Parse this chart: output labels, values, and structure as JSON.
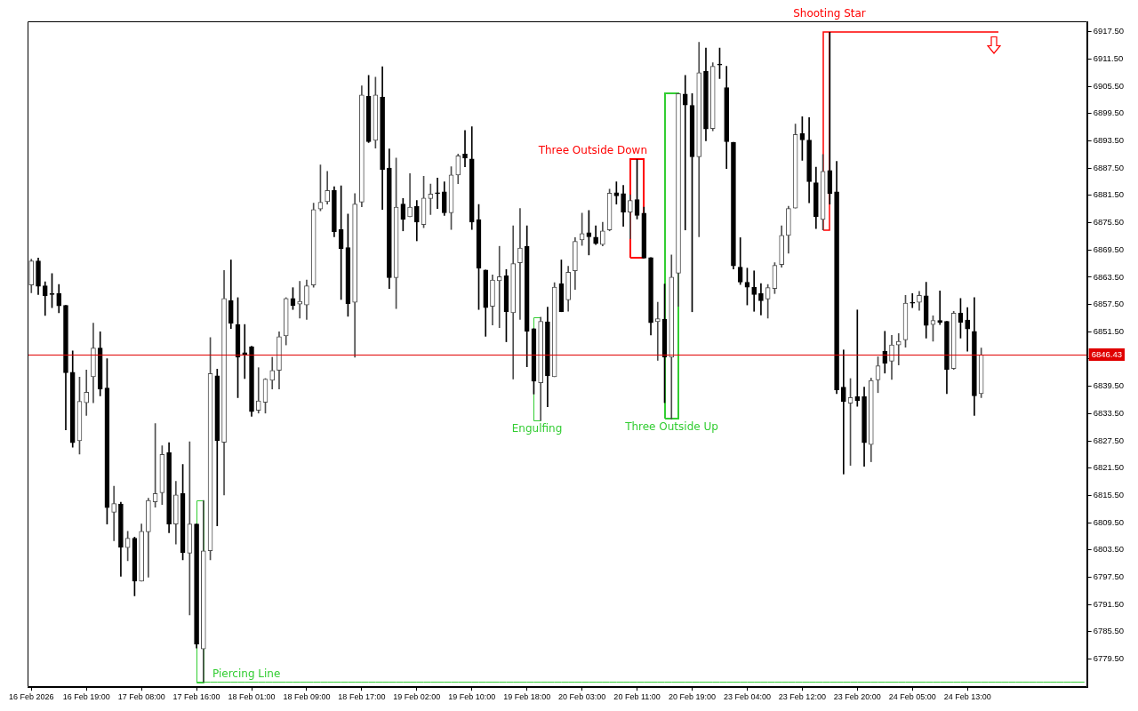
{
  "chart_data": {
    "type": "candlestick",
    "categories": [
      "16 Feb 2026",
      null,
      null,
      null,
      null,
      null,
      null,
      null,
      "16 Feb 19:00",
      null,
      null,
      null,
      null,
      null,
      null,
      null,
      "17 Feb 08:00",
      null,
      null,
      null,
      null,
      null,
      null,
      null,
      "17 Feb 16:00",
      null,
      null,
      null,
      null,
      null,
      null,
      null,
      "18 Feb 01:00",
      null,
      null,
      null,
      null,
      null,
      null,
      null,
      "18 Feb 09:00",
      null,
      null,
      null,
      null,
      null,
      null,
      null,
      "18 Feb 17:00",
      null,
      null,
      null,
      null,
      null,
      null,
      null,
      "19 Feb 02:00",
      null,
      null,
      null,
      null,
      null,
      null,
      null,
      "19 Feb 10:00",
      null,
      null,
      null,
      null,
      null,
      null,
      null,
      "19 Feb 18:00",
      null,
      null,
      null,
      null,
      null,
      null,
      null,
      "20 Feb 03:00",
      null,
      null,
      null,
      null,
      null,
      null,
      null,
      "20 Feb 11:00",
      null,
      null,
      null,
      null,
      null,
      null,
      null,
      "20 Feb 19:00",
      null,
      null,
      null,
      null,
      null,
      null,
      null,
      "23 Feb 04:00",
      null,
      null,
      null,
      null,
      null,
      null,
      null,
      "23 Feb 12:00",
      null,
      null,
      null,
      null,
      null,
      null,
      null,
      "23 Feb 20:00",
      null,
      null,
      null,
      null,
      null,
      null,
      null,
      "24 Feb 05:00",
      null,
      null,
      null,
      null,
      null,
      null,
      null,
      "24 Feb 13:00",
      null,
      null,
      null,
      null,
      null,
      null,
      null,
      null,
      null,
      null,
      null,
      null,
      null,
      null,
      null,
      null,
      null
    ],
    "ohlc": [
      [
        6861.8,
        6867.5,
        6860.1,
        6867.1
      ],
      [
        6867.1,
        6867.7,
        6859.7,
        6861.5
      ],
      [
        6861.6,
        6862.5,
        6855.1,
        6859.4
      ],
      [
        6859.7,
        6864.3,
        6856.8,
        6859.7
      ],
      [
        6859.9,
        6861.9,
        6855.7,
        6857.2
      ],
      [
        6857.3,
        6857.3,
        6829.9,
        6842.5
      ],
      [
        6842.6,
        6847.3,
        6826.1,
        6827.1
      ],
      [
        6827.5,
        6841.5,
        6824.6,
        6836.2
      ],
      [
        6835.9,
        6843.1,
        6833.1,
        6838.2
      ],
      [
        6841.6,
        6853.4,
        6835.9,
        6847.9
      ],
      [
        6847.9,
        6851.5,
        6837.4,
        6838.9
      ],
      [
        6839.1,
        6845.6,
        6809.2,
        6812.8
      ],
      [
        6811.8,
        6817.5,
        6805.5,
        6813.7
      ],
      [
        6813.6,
        6814.0,
        6797.7,
        6804.1
      ],
      [
        6804.0,
        6807.6,
        6801.1,
        6806.1
      ],
      [
        6806.1,
        6806.3,
        6793.4,
        6796.6
      ],
      [
        6796.6,
        6809.2,
        6796.6,
        6807.6
      ],
      [
        6807.5,
        6814.9,
        6797.5,
        6814.4
      ],
      [
        6814.1,
        6831.3,
        6812.9,
        6815.9
      ],
      [
        6816.1,
        6826.4,
        6813.5,
        6824.5
      ],
      [
        6824.9,
        6827.1,
        6807.3,
        6809.2
      ],
      [
        6809.2,
        6818.6,
        6804.8,
        6815.6
      ],
      [
        6815.9,
        6822.3,
        6801.3,
        6802.9
      ],
      [
        6802.8,
        6827.3,
        6789.2,
        6809.2
      ],
      [
        6809.2,
        6809.2,
        6781.9,
        6782.8
      ],
      [
        6781.7,
        6814.4,
        6774.4,
        6803.3
      ],
      [
        6803.3,
        6850.2,
        6801.3,
        6842.3
      ],
      [
        6841.8,
        6843.3,
        6808.8,
        6827.5
      ],
      [
        6827.2,
        6865.0,
        6815.6,
        6858.8
      ],
      [
        6858.4,
        6867.3,
        6852.2,
        6853.4
      ],
      [
        6853.1,
        6859.0,
        6837.0,
        6845.9
      ],
      [
        6846.9,
        6853.1,
        6841.2,
        6846.5
      ],
      [
        6848.2,
        6848.3,
        6832.9,
        6833.9
      ],
      [
        6834.2,
        6843.6,
        6833.6,
        6836.3
      ],
      [
        6836.0,
        6841.2,
        6833.6,
        6841.1
      ],
      [
        6840.8,
        6845.9,
        6838.9,
        6843.0
      ],
      [
        6843.0,
        6851.5,
        6838.9,
        6850.4
      ],
      [
        6850.6,
        6859.0,
        6848.6,
        6858.8
      ],
      [
        6858.8,
        6861.2,
        6856.4,
        6857.3
      ],
      [
        6857.6,
        6862.6,
        6854.5,
        6858.2
      ],
      [
        6857.4,
        6862.9,
        6854.2,
        6861.6
      ],
      [
        6861.8,
        6879.8,
        6861.3,
        6878.4
      ],
      [
        6878.5,
        6888.2,
        6878.1,
        6880.0
      ],
      [
        6880.1,
        6886.8,
        6879.6,
        6882.6
      ],
      [
        6882.6,
        6883.4,
        6872.4,
        6873.5
      ],
      [
        6874.0,
        6883.6,
        6858.6,
        6869.8
      ],
      [
        6870.0,
        6877.4,
        6854.9,
        6857.7
      ],
      [
        6858.0,
        6881.9,
        6845.9,
        6879.6
      ],
      [
        6880.0,
        6905.6,
        6879.0,
        6903.6
      ],
      [
        6903.3,
        6907.9,
        6893.1,
        6893.3
      ],
      [
        6893.6,
        6907.5,
        6891.9,
        6903.6
      ],
      [
        6903.1,
        6909.8,
        6878.4,
        6887.2
      ],
      [
        6887.5,
        6891.7,
        6861.0,
        6863.4
      ],
      [
        6863.4,
        6889.7,
        6856.6,
        6878.9
      ],
      [
        6879.6,
        6880.8,
        6873.7,
        6876.2
      ],
      [
        6876.8,
        6886.3,
        6876.8,
        6878.9
      ],
      [
        6879.1,
        6880.4,
        6871.5,
        6875.6
      ],
      [
        6875.1,
        6885.7,
        6874.4,
        6880.9
      ],
      [
        6880.8,
        6884.0,
        6877.3,
        6881.8
      ],
      [
        6881.9,
        6885.3,
        6878.6,
        6881.9
      ],
      [
        6882.3,
        6884.5,
        6877.1,
        6877.7
      ],
      [
        6877.7,
        6887.8,
        6874.0,
        6886.0
      ],
      [
        6886.0,
        6890.6,
        6884.1,
        6890.2
      ],
      [
        6890.6,
        6895.8,
        6887.8,
        6889.7
      ],
      [
        6889.5,
        6896.6,
        6874.0,
        6875.6
      ],
      [
        6876.2,
        6879.5,
        6856.4,
        6865.5
      ],
      [
        6865.1,
        6865.1,
        6850.5,
        6856.8
      ],
      [
        6857.1,
        6864.0,
        6853.0,
        6862.9
      ],
      [
        6862.7,
        6870.3,
        6852.4,
        6863.6
      ],
      [
        6863.8,
        6865.2,
        6849.3,
        6855.9
      ],
      [
        6855.7,
        6874.8,
        6841.1,
        6866.5
      ],
      [
        6866.7,
        6878.6,
        6854.2,
        6869.9
      ],
      [
        6870.3,
        6874.8,
        6843.8,
        6851.6
      ],
      [
        6852.2,
        6852.2,
        6837.8,
        6840.6
      ],
      [
        6840.3,
        6854.7,
        6832.0,
        6853.8
      ],
      [
        6853.7,
        6856.9,
        6835.0,
        6841.8
      ],
      [
        6841.6,
        6862.3,
        6841.6,
        6861.3
      ],
      [
        6862.1,
        6867.3,
        6855.9,
        6855.9
      ],
      [
        6858.5,
        6865.9,
        6856.0,
        6864.6
      ],
      [
        6864.9,
        6872.2,
        6860.8,
        6871.4
      ],
      [
        6871.7,
        6877.6,
        6870.5,
        6873.1
      ],
      [
        6873.3,
        6878.2,
        6868.4,
        6872.4
      ],
      [
        6872.3,
        6874.8,
        6870.7,
        6870.9
      ],
      [
        6870.7,
        6875.6,
        6870.4,
        6873.7
      ],
      [
        6873.9,
        6882.9,
        6873.7,
        6882.0
      ],
      [
        6882.1,
        6884.5,
        6879.6,
        6881.4
      ],
      [
        6881.9,
        6883.7,
        6874.7,
        6877.8
      ],
      [
        6877.8,
        6881.6,
        6872.0,
        6880.4
      ],
      [
        6880.6,
        6889.4,
        6876.3,
        6877.1
      ],
      [
        6877.6,
        6878.9,
        6867.7,
        6867.7
      ],
      [
        6867.8,
        6867.8,
        6850.8,
        6853.5
      ],
      [
        6853.7,
        6858.0,
        6845.2,
        6854.4
      ],
      [
        6854.3,
        6862.0,
        6835.9,
        6845.9
      ],
      [
        6845.9,
        6868.4,
        6832.3,
        6863.5
      ],
      [
        6864.4,
        6903.9,
        6857.1,
        6903.9
      ],
      [
        6903.8,
        6907.9,
        6873.9,
        6901.4
      ],
      [
        6901.3,
        6903.9,
        6855.9,
        6890.0
      ],
      [
        6890.0,
        6915.2,
        6872.4,
        6908.5
      ],
      [
        6908.8,
        6913.9,
        6893.5,
        6896.1
      ],
      [
        6896.2,
        6910.7,
        6895.7,
        6909.9
      ],
      [
        6910.2,
        6913.9,
        6907.2,
        6910.2
      ],
      [
        6905.2,
        6909.9,
        6887.4,
        6893.3
      ],
      [
        6893.2,
        6893.2,
        6865.3,
        6866.0
      ],
      [
        6865.7,
        6872.2,
        6861.9,
        6862.4
      ],
      [
        6862.4,
        6865.5,
        6857.4,
        6861.3
      ],
      [
        6861.3,
        6864.9,
        6856.0,
        6859.7
      ],
      [
        6859.9,
        6862.1,
        6855.2,
        6858.3
      ],
      [
        6858.7,
        6861.9,
        6854.5,
        6861.2
      ],
      [
        6861.0,
        6866.7,
        6859.9,
        6866.1
      ],
      [
        6866.3,
        6874.8,
        6865.7,
        6872.7
      ],
      [
        6872.7,
        6879.1,
        6868.8,
        6878.6
      ],
      [
        6878.7,
        6897.2,
        6878.7,
        6894.9
      ],
      [
        6895.1,
        6898.8,
        6889.2,
        6893.7
      ],
      [
        6893.7,
        6898.6,
        6879.9,
        6884.5
      ],
      [
        6884.3,
        6887.7,
        6874.2,
        6876.8
      ],
      [
        6876.2,
        6890.5,
        6873.9,
        6886.8
      ],
      [
        6887.0,
        6917.4,
        6879.6,
        6881.9
      ],
      [
        6882.3,
        6889.0,
        6837.9,
        6838.7
      ],
      [
        6839.3,
        6847.5,
        6820.2,
        6836.1
      ],
      [
        6835.8,
        6841.2,
        6822.1,
        6837.0
      ],
      [
        6837.2,
        6856.3,
        6835.1,
        6836.3
      ],
      [
        6837.2,
        6839.3,
        6821.9,
        6827.1
      ],
      [
        6826.7,
        6841.3,
        6822.9,
        6840.8
      ],
      [
        6840.9,
        6846.0,
        6838.1,
        6844.0
      ],
      [
        6847.2,
        6851.6,
        6842.4,
        6844.6
      ],
      [
        6845.0,
        6850.7,
        6841.0,
        6848.6
      ],
      [
        6848.6,
        6851.1,
        6844.2,
        6849.4
      ],
      [
        6849.7,
        6859.5,
        6848.1,
        6857.8
      ],
      [
        6857.8,
        6859.9,
        6856.8,
        6857.8
      ],
      [
        6858.0,
        6860.4,
        6856.2,
        6859.5
      ],
      [
        6859.4,
        6862.4,
        6850.1,
        6852.9
      ],
      [
        6853.1,
        6855.0,
        6849.4,
        6854.0
      ],
      [
        6854.0,
        6860.5,
        6853.1,
        6853.6
      ],
      [
        6853.8,
        6853.8,
        6837.9,
        6843.2
      ],
      [
        6843.4,
        6856.0,
        6843.2,
        6855.6
      ],
      [
        6855.6,
        6858.8,
        6850.1,
        6853.6
      ],
      [
        6854.1,
        6856.8,
        6847.2,
        6852.1
      ],
      [
        6851.6,
        6859.0,
        6833.1,
        6837.4
      ],
      [
        6837.9,
        6847.9,
        6837.0,
        6846.4
      ],
      null,
      null,
      null,
      null,
      null,
      null,
      null,
      null,
      null,
      null,
      null,
      null,
      null,
      null,
      null
    ],
    "colors": [
      "#4d4d4d",
      "#000000",
      "#000000",
      "#000000",
      "#000000",
      "#000000",
      "#000000",
      "#4d4d4d",
      "#4d4d4d",
      "#4d4d4d",
      "#000000",
      "#000000",
      "#4d4d4d",
      "#000000",
      "#4d4d4d",
      "#000000",
      "#4d4d4d",
      "#4d4d4d",
      "#4d4d4d",
      "#4d4d4d",
      "#000000",
      "#4d4d4d",
      "#000000",
      "#4d4d4d",
      "#000000",
      "#4d4d4d",
      "#4d4d4d",
      "#000000",
      "#4d4d4d",
      "#000000",
      "#000000",
      "#000000",
      "#000000",
      "#4d4d4d",
      "#4d4d4d",
      "#4d4d4d",
      "#4d4d4d",
      "#4d4d4d",
      "#000000",
      "#4d4d4d",
      "#4d4d4d",
      "#4d4d4d",
      "#4d4d4d",
      "#4d4d4d",
      "#000000",
      "#000000",
      "#000000",
      "#4d4d4d",
      "#4d4d4d",
      "#000000",
      "#4d4d4d",
      "#000000",
      "#000000",
      "#4d4d4d",
      "#000000",
      "#4d4d4d",
      "#000000",
      "#4d4d4d",
      "#4d4d4d",
      "#000000",
      "#000000",
      "#4d4d4d",
      "#4d4d4d",
      "#000000",
      "#000000",
      "#000000",
      "#000000",
      "#4d4d4d",
      "#4d4d4d",
      "#000000",
      "#4d4d4d",
      "#4d4d4d",
      "#000000",
      "#000000",
      "#4d4d4d",
      "#000000",
      "#4d4d4d",
      "#000000",
      "#4d4d4d",
      "#4d4d4d",
      "#4d4d4d",
      "#000000",
      "#000000",
      "#4d4d4d",
      "#4d4d4d",
      "#000000",
      "#000000",
      "#4d4d4d",
      "#000000",
      "#000000",
      "#000000",
      "#4d4d4d",
      "#000000",
      "#4d4d4d",
      "#4d4d4d",
      "#000000",
      "#000000",
      "#4d4d4d",
      "#000000",
      "#4d4d4d",
      "#000000",
      "#000000",
      "#000000",
      "#000000",
      "#000000",
      "#000000",
      "#000000",
      "#4d4d4d",
      "#4d4d4d",
      "#4d4d4d",
      "#4d4d4d",
      "#4d4d4d",
      "#000000",
      "#000000",
      "#000000",
      "#4d4d4d",
      "#000000",
      "#000000",
      "#000000",
      "#4d4d4d",
      "#000000",
      "#000000",
      "#4d4d4d",
      "#4d4d4d",
      "#000000",
      "#4d4d4d",
      "#4d4d4d",
      "#4d4d4d",
      "#000000",
      "#4d4d4d",
      "#000000",
      "#4d4d4d",
      "#000000",
      "#000000",
      "#4d4d4d",
      "#000000",
      "#000000",
      "#000000",
      "#4d4d4d",
      null,
      null,
      null,
      null,
      null,
      null,
      null,
      null,
      null,
      null,
      null,
      null,
      null,
      null,
      null
    ],
    "series": [
      {
        "type": "line",
        "color": "#32cd32",
        "values": [
          null,
          null,
          null,
          null,
          null,
          null,
          null,
          null,
          null,
          null,
          null,
          null,
          null,
          null,
          null,
          null,
          null,
          null,
          null,
          null,
          null,
          null,
          null,
          null,
          6774.4,
          6774.4,
          6774.4,
          6774.4,
          6774.4,
          6774.4,
          6774.4,
          6774.4,
          6774.4,
          6774.4,
          6774.4,
          6774.4,
          6774.4,
          6774.4,
          6774.4,
          6774.4,
          6774.4,
          6774.4,
          6774.4,
          6774.4,
          6774.4,
          6774.4,
          6774.4,
          6774.4,
          6774.4,
          6774.4,
          6774.4,
          6774.4,
          6774.4,
          6774.4,
          6774.4,
          6774.4,
          6774.4,
          6774.4,
          6774.4,
          6774.4,
          6774.4,
          6774.4,
          6774.4,
          6774.4,
          6774.4,
          6774.4,
          6774.4,
          6774.4,
          6774.4,
          6774.4,
          6774.4,
          6774.4,
          6774.4,
          6774.4,
          6774.4,
          6774.4,
          6774.4,
          6774.4,
          6774.4,
          6774.4,
          6774.4,
          6774.4,
          6774.4,
          6774.4,
          6774.4,
          6774.4,
          6774.4,
          6774.4,
          6774.4,
          6774.4,
          6774.4,
          6774.4,
          6774.4,
          6774.4,
          6774.4,
          6774.4,
          6774.4,
          6774.4,
          6774.4,
          6774.4,
          6774.4,
          6774.4,
          6774.4,
          6774.4,
          6774.4,
          6774.4,
          6774.4,
          6774.4,
          6774.4,
          6774.4,
          6774.4,
          6774.4,
          6774.4,
          6774.4,
          6774.4,
          6774.4,
          6774.4,
          6774.4,
          6774.4,
          6774.4,
          6774.4,
          6774.4,
          6774.4,
          6774.4,
          6774.4,
          6774.4,
          6774.4,
          6774.4,
          6774.4,
          6774.4,
          6774.4,
          6774.4,
          6774.4,
          6774.4,
          6774.4,
          6774.4,
          6774.4,
          6774.4,
          6774.4,
          6774.4,
          6774.4,
          6774.4,
          6774.4,
          6774.4,
          6774.4,
          6774.4,
          6774.4,
          6774.4,
          6774.4,
          6774.4,
          6774.4,
          6774.4,
          6774.4,
          6774.4
        ]
      }
    ],
    "ylim": [
      6773.3,
      6919.8
    ],
    "yticks": [
      {
        "value": 6779.5,
        "label": "6779.50"
      },
      {
        "value": 6785.5,
        "label": "6785.50"
      },
      {
        "value": 6791.5,
        "label": "6791.50"
      },
      {
        "value": 6797.5,
        "label": "6797.50"
      },
      {
        "value": 6803.5,
        "label": "6803.50"
      },
      {
        "value": 6809.5,
        "label": "6809.50"
      },
      {
        "value": 6815.5,
        "label": "6815.50"
      },
      {
        "value": 6821.5,
        "label": "6821.50"
      },
      {
        "value": 6827.5,
        "label": "6827.50"
      },
      {
        "value": 6833.5,
        "label": "6833.50"
      },
      {
        "value": 6839.5,
        "label": "6839.50"
      },
      {
        "value": 6845.5,
        "label": null
      },
      {
        "value": 6851.5,
        "label": "6851.50"
      },
      {
        "value": 6857.5,
        "label": "6857.50"
      },
      {
        "value": 6863.5,
        "label": "6863.50"
      },
      {
        "value": 6869.5,
        "label": "6869.50"
      },
      {
        "value": 6875.5,
        "label": "6875.50"
      },
      {
        "value": 6881.5,
        "label": "6881.50"
      },
      {
        "value": 6887.5,
        "label": "6887.50"
      },
      {
        "value": 6893.5,
        "label": "6893.50"
      },
      {
        "value": 6899.5,
        "label": "6899.50"
      },
      {
        "value": 6905.5,
        "label": "6905.50"
      },
      {
        "value": 6911.5,
        "label": "6911.50"
      },
      {
        "value": 6917.5,
        "label": "6917.50"
      }
    ],
    "ref_lines": [
      {
        "axis": "y",
        "value": 6846.43,
        "label": "6846.43",
        "color": "#e00000"
      }
    ],
    "annotations": [
      "Piercing Line",
      "Engulfing",
      "Three Outside Down",
      "Three Outside Up",
      "Shooting Star"
    ]
  }
}
